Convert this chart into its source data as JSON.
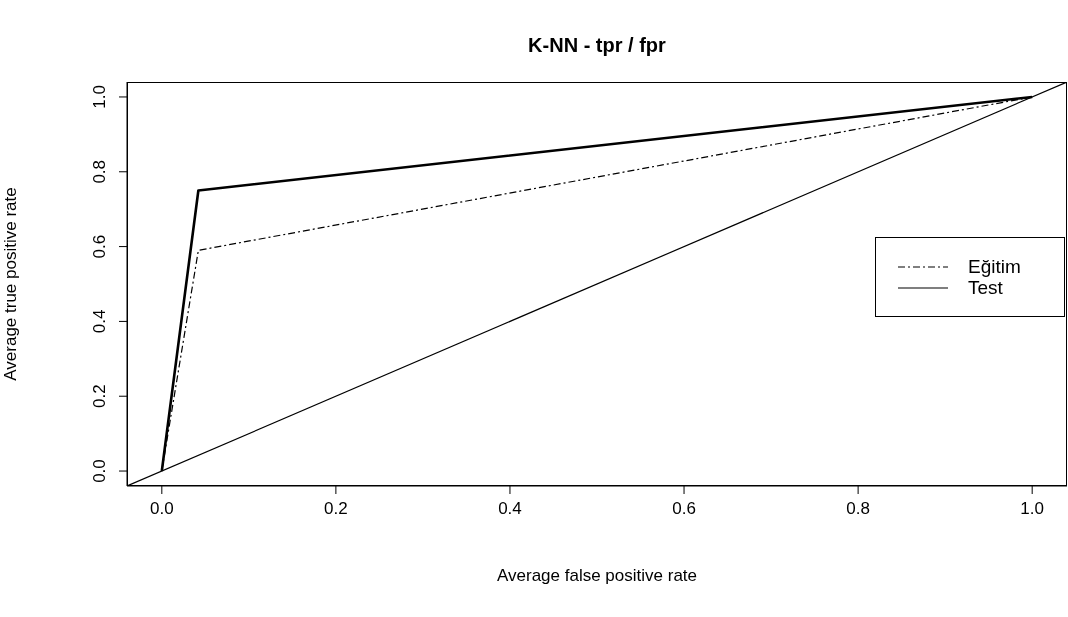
{
  "chart_data": {
    "type": "line",
    "title": "K-NN - tpr / fpr",
    "xlabel": "Average false positive rate",
    "ylabel": "Average true positive rate",
    "xlim": [
      -0.04,
      1.04
    ],
    "ylim": [
      -0.04,
      1.04
    ],
    "xticks": [
      {
        "value": 0,
        "label": "0.0"
      },
      0.2,
      0.4,
      0.6,
      0.8,
      {
        "value": 1,
        "label": "1.0"
      }
    ],
    "yticks": [
      {
        "value": 0,
        "label": "0.0"
      },
      0.2,
      0.4,
      0.6,
      0.8,
      {
        "value": 1,
        "label": "1.0"
      }
    ],
    "series": [
      {
        "name": "Eğitim",
        "color": "#000000",
        "line_style": "dashed",
        "x": [
          0,
          0.042,
          1
        ],
        "values": [
          0,
          0.59,
          1
        ]
      },
      {
        "name": "Test",
        "color": "#000000",
        "line_style": "solid",
        "x": [
          0,
          0.042,
          1
        ],
        "values": [
          0,
          0.75,
          1
        ]
      },
      {
        "color": "#000000",
        "line_style": "solid",
        "x": [
          -0.04,
          1.04
        ],
        "values": [
          -0.04,
          1.04
        ]
      }
    ],
    "legend": "right",
    "grid": false
  }
}
